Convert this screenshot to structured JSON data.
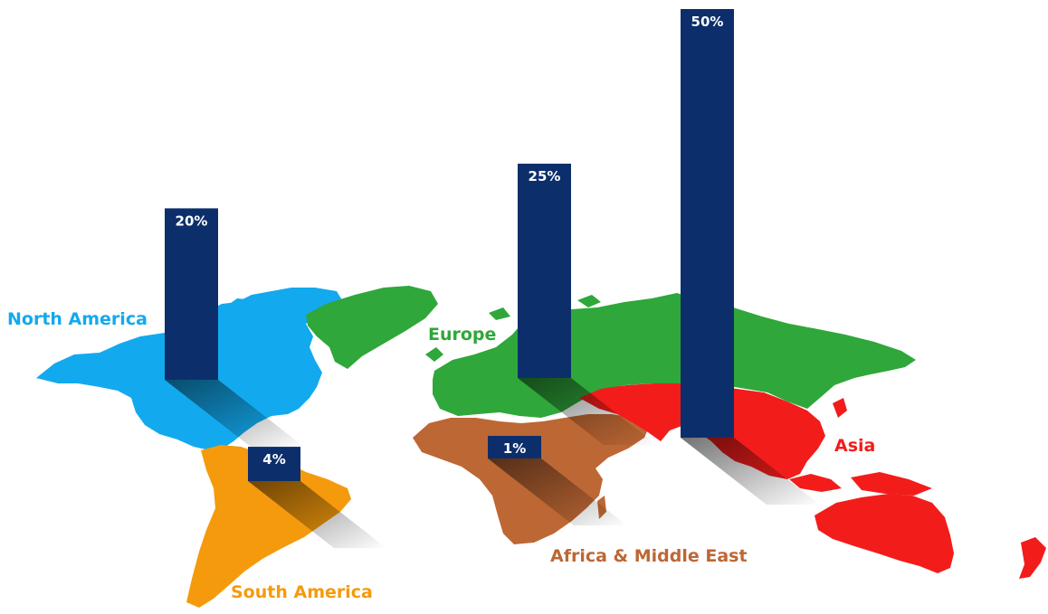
{
  "chart_data": {
    "type": "bar",
    "title": "",
    "xlabel": "",
    "ylabel": "",
    "ylim": [
      0,
      50
    ],
    "grid": false,
    "legend": "none",
    "categories": [
      "North America",
      "South America",
      "Europe",
      "Africa & Middle East",
      "Asia"
    ],
    "values": [
      20,
      4,
      25,
      1,
      50
    ],
    "value_labels": [
      "20%",
      "4%",
      "25%",
      "1%",
      "50%"
    ],
    "bar_color": "#0c2f6b",
    "region_colors": {
      "North America": "#13a9ef",
      "South America": "#f59a0c",
      "Europe": "#2fa73a",
      "Africa & Middle East": "#bd6734",
      "Asia": "#f21d1b"
    }
  }
}
